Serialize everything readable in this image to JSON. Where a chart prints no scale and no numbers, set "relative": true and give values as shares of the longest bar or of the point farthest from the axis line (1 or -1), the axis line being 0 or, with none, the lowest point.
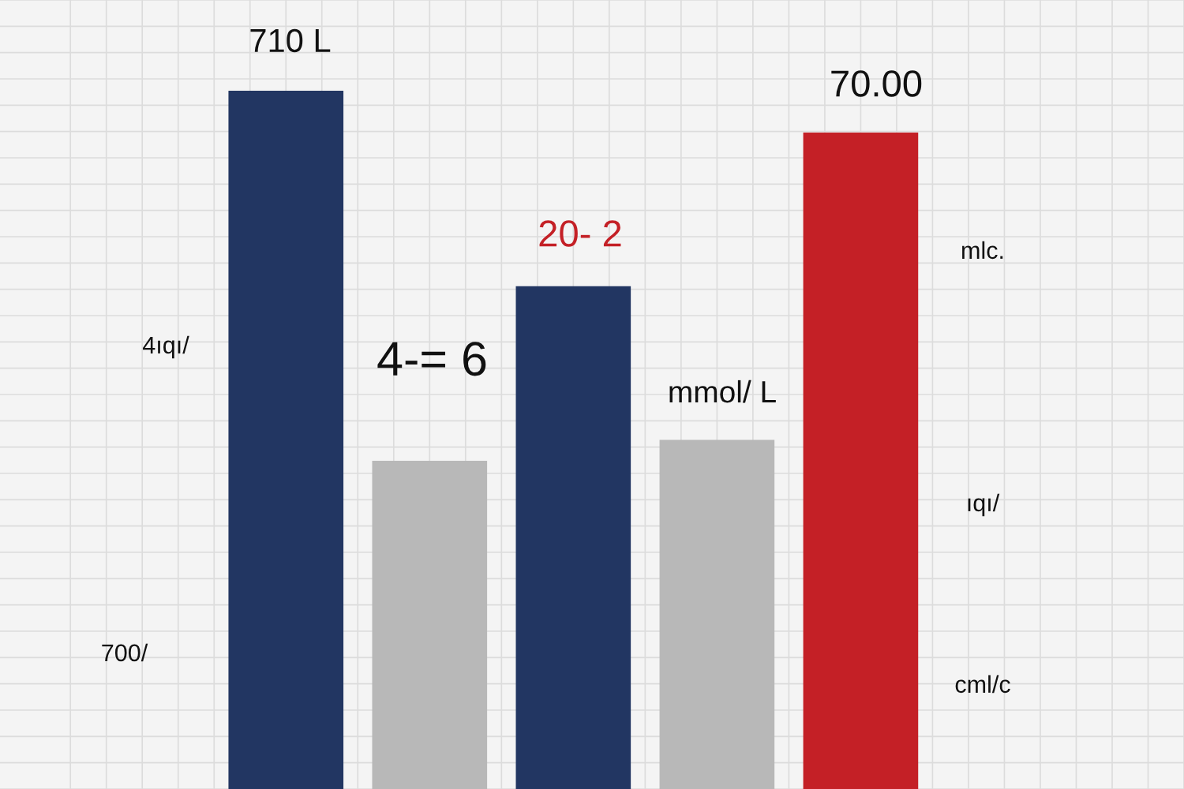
{
  "chart_data": {
    "type": "bar",
    "relative": true,
    "categories": [
      null,
      null,
      null,
      null,
      null
    ],
    "values": [
      1,
      0.47,
      0.72,
      0.5,
      0.94
    ],
    "colors": [
      "#223662",
      "#b8b8b8",
      "#223662",
      "#b8b8b8",
      "#c42026"
    ],
    "annotations": [
      "710 L",
      "4-= 6",
      "20- 2",
      "mmol/ L",
      "70.00",
      "4ıqı/",
      "700/",
      "mlc.",
      "ıqı/",
      "cml/c"
    ],
    "grid": true
  }
}
